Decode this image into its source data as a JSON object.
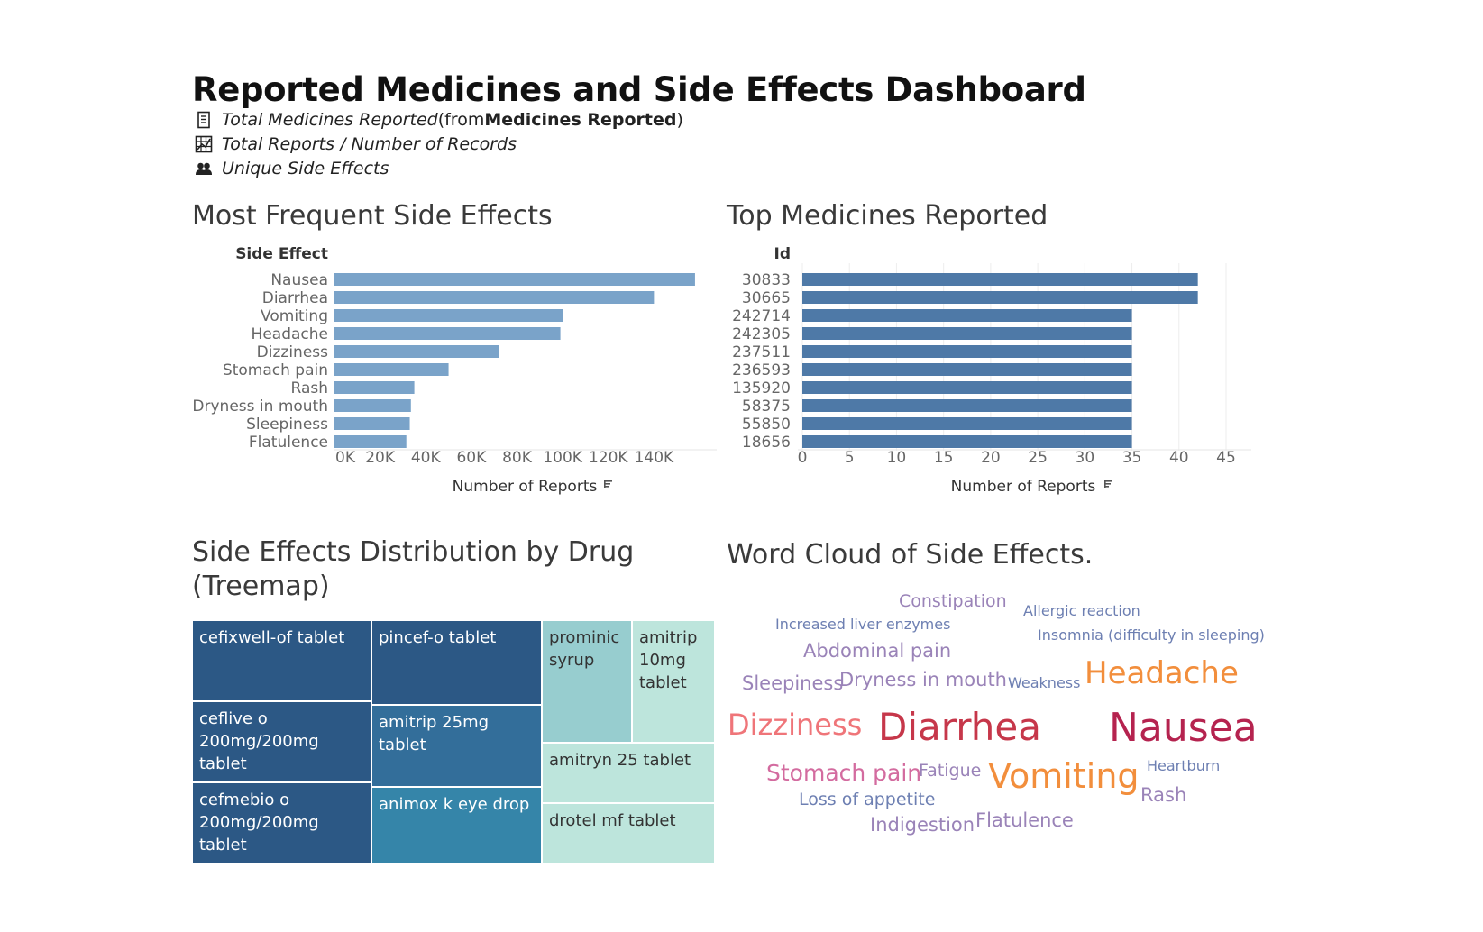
{
  "dashboard": {
    "title": "Reported Medicines and Side Effects Dashboard",
    "kpis": [
      {
        "icon": "document-icon",
        "italic": "Total Medicines Reported",
        "mid": " (from ",
        "bold": "Medicines Reported",
        "end": ")"
      },
      {
        "icon": "grid-icon",
        "italic": "Total Reports / Number of Records",
        "mid": "",
        "bold": "",
        "end": ""
      },
      {
        "icon": "users-icon",
        "italic": "Unique Side Effects",
        "mid": "",
        "bold": "",
        "end": ""
      }
    ]
  },
  "sections": {
    "side_effects_title": "Most Frequent Side Effects",
    "medicines_title": "Top Medicines Reported",
    "treemap_title_line1": "Side Effects Distribution by Drug",
    "treemap_title_line2": "(Treemap)",
    "wordcloud_title": "Word Cloud of Side Effects."
  },
  "chart_data": [
    {
      "type": "bar",
      "orientation": "horizontal",
      "title": "Most Frequent Side Effects",
      "row_header": "Side Effect",
      "xlabel": "Number of Reports",
      "categories": [
        "Nausea",
        "Diarrhea",
        "Vomiting",
        "Headache",
        "Dizziness",
        "Stomach pain",
        "Rash",
        "Dryness in mouth",
        "Sleepiness",
        "Flatulence"
      ],
      "values": [
        158000,
        140000,
        100000,
        99000,
        72000,
        50000,
        35000,
        33500,
        33000,
        31500
      ],
      "xlim": [
        0,
        160000
      ],
      "ticks": [
        0,
        20000,
        40000,
        60000,
        80000,
        100000,
        120000,
        140000
      ],
      "tick_labels": [
        "0K",
        "20K",
        "40K",
        "60K",
        "80K",
        "100K",
        "120K",
        "140K"
      ],
      "color": "#7aa3c9",
      "grid": false
    },
    {
      "type": "bar",
      "orientation": "horizontal",
      "title": "Top Medicines Reported",
      "row_header": "Id",
      "xlabel": "Number of Reports",
      "categories": [
        "30833",
        "30665",
        "242714",
        "242305",
        "237511",
        "236593",
        "135920",
        "58375",
        "55850",
        "18656"
      ],
      "values": [
        42,
        42,
        35,
        35,
        35,
        35,
        35,
        35,
        35,
        35
      ],
      "xlim": [
        0,
        45
      ],
      "ticks": [
        0,
        5,
        10,
        15,
        20,
        25,
        30,
        35,
        40,
        45
      ],
      "tick_labels": [
        "0",
        "5",
        "10",
        "15",
        "20",
        "25",
        "30",
        "35",
        "40",
        "45"
      ],
      "color": "#4e79a7",
      "grid": true
    },
    {
      "type": "treemap",
      "title": "Side Effects Distribution by Drug (Treemap)",
      "items": [
        {
          "label": "cefixwell-of tablet",
          "color": "#2c5885",
          "text_color": "#ffffff"
        },
        {
          "label": "ceflive o 200mg/200mg tablet",
          "color": "#2c5885",
          "text_color": "#ffffff"
        },
        {
          "label": "cefmebio o 200mg/200mg tablet",
          "color": "#2c5885",
          "text_color": "#ffffff"
        },
        {
          "label": "pincef-o tablet",
          "color": "#2c5885",
          "text_color": "#ffffff"
        },
        {
          "label": "amitrip 25mg tablet",
          "color": "#336e9a",
          "text_color": "#ffffff"
        },
        {
          "label": "animox k eye drop",
          "color": "#3585a9",
          "text_color": "#ffffff"
        },
        {
          "label": "prominic syrup",
          "color": "#97cdcf",
          "text_color": "#333333"
        },
        {
          "label": "amitrip 10mg tablet",
          "color": "#bde5dc",
          "text_color": "#333333"
        },
        {
          "label": "amitryn 25 tablet",
          "color": "#bde5dc",
          "text_color": "#333333"
        },
        {
          "label": "drotel mf tablet",
          "color": "#bde5dc",
          "text_color": "#333333"
        }
      ]
    }
  ],
  "wordcloud": {
    "words": [
      {
        "text": "Constipation",
        "color": "#9a83b8"
      },
      {
        "text": "Allergic reaction",
        "color": "#6d7fb2"
      },
      {
        "text": "Increased liver enzymes",
        "color": "#6d7fb2"
      },
      {
        "text": "Insomnia (difficulty in sleeping)",
        "color": "#6d7fb2"
      },
      {
        "text": "Abdominal pain",
        "color": "#9a83b8"
      },
      {
        "text": "Sleepiness",
        "color": "#9a83b8"
      },
      {
        "text": "Dryness in mouth",
        "color": "#9a83b8"
      },
      {
        "text": "Weakness",
        "color": "#6d7fb2"
      },
      {
        "text": "Headache",
        "color": "#f28e3c"
      },
      {
        "text": "Dizziness",
        "color": "#ef7579"
      },
      {
        "text": "Diarrhea",
        "color": "#c6374a"
      },
      {
        "text": "Nausea",
        "color": "#b5234f"
      },
      {
        "text": "Stomach pain",
        "color": "#d36b9f"
      },
      {
        "text": "Fatigue",
        "color": "#9a83b8"
      },
      {
        "text": "Vomiting",
        "color": "#f28e3c"
      },
      {
        "text": "Heartburn",
        "color": "#6d7fb2"
      },
      {
        "text": "Rash",
        "color": "#9a83b8"
      },
      {
        "text": "Loss of appetite",
        "color": "#6d7fb2"
      },
      {
        "text": "Indigestion",
        "color": "#9a83b8"
      },
      {
        "text": "Flatulence",
        "color": "#9a83b8"
      }
    ]
  }
}
